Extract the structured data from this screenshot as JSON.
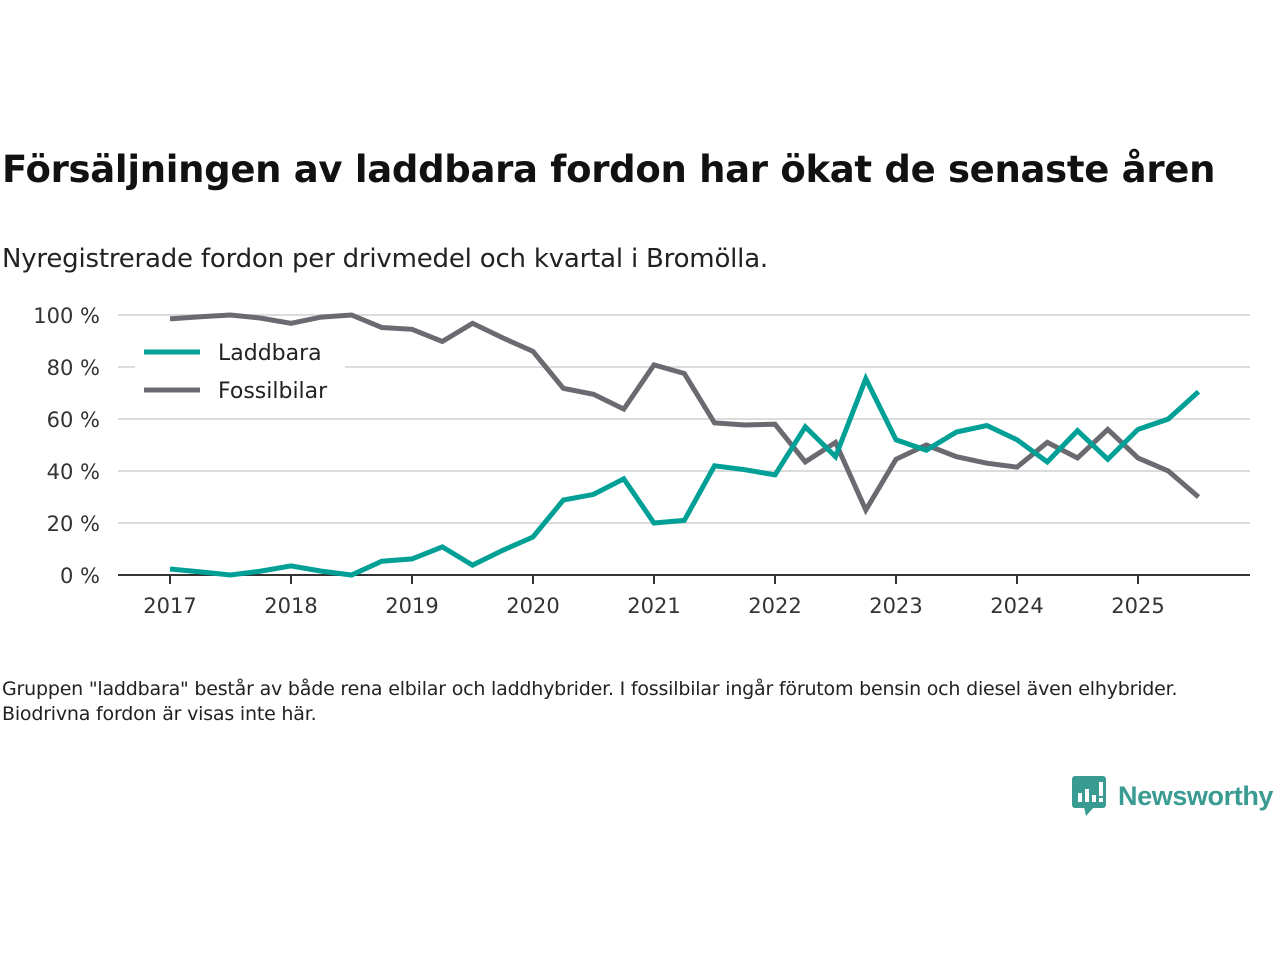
{
  "header": {
    "title": "Försäljningen av laddbara fordon har ökat de senaste åren",
    "subtitle": "Nyregistrerade fordon per drivmedel och kvartal i Bromölla."
  },
  "footer": {
    "note": "Gruppen \"laddbara\" består av både rena elbilar och laddhybrider. I fossilbilar ingår förutom bensin och diesel även elhybrider. Biodrivna fordon är visas inte här.",
    "brand": "Newsworthy",
    "brand_icon": "newsworthy-logo-icon",
    "brand_color": "#3a9b93"
  },
  "chart_data": {
    "type": "line",
    "title": "Försäljningen av laddbara fordon har ökat de senaste åren",
    "subtitle": "Nyregistrerade fordon per drivmedel och kvartal i Bromölla.",
    "xlabel": "",
    "ylabel": "",
    "ylim": [
      0,
      100
    ],
    "y_ticks": [
      0,
      20,
      40,
      60,
      80,
      100
    ],
    "y_tick_labels": [
      "0 %",
      "20 %",
      "40 %",
      "60 %",
      "80 %",
      "100 %"
    ],
    "x_ticks": [
      "2017",
      "2018",
      "2019",
      "2020",
      "2021",
      "2022",
      "2023",
      "2024",
      "2025"
    ],
    "grid": true,
    "legend_position": "top-left",
    "x": [
      "2017Q1",
      "2017Q2",
      "2017Q3",
      "2017Q4",
      "2018Q1",
      "2018Q2",
      "2018Q3",
      "2018Q4",
      "2019Q1",
      "2019Q2",
      "2019Q3",
      "2019Q4",
      "2020Q1",
      "2020Q2",
      "2020Q3",
      "2020Q4",
      "2021Q1",
      "2021Q2",
      "2021Q3",
      "2021Q4",
      "2022Q1",
      "2022Q2",
      "2022Q3",
      "2022Q4",
      "2023Q1",
      "2023Q2",
      "2023Q3",
      "2023Q4",
      "2024Q1",
      "2024Q2",
      "2024Q3",
      "2024Q4",
      "2025Q1",
      "2025Q2",
      "2025Q3"
    ],
    "series": [
      {
        "name": "Laddbara",
        "color": "#00a096",
        "values": [
          2.3,
          1.2,
          0,
          1.5,
          3.5,
          1.5,
          0,
          5.3,
          6.2,
          10.8,
          3.8,
          9.5,
          14.6,
          28.8,
          31,
          37,
          20,
          21,
          42,
          40.5,
          38.5,
          57,
          45.5,
          75.5,
          52,
          48,
          55,
          57.5,
          52,
          43.5,
          55.5,
          44.5,
          56,
          60,
          70.5
        ]
      },
      {
        "name": "Fossilbilar",
        "color": "#6b6a70",
        "values": [
          98.5,
          99.3,
          100,
          98.8,
          96.8,
          99.2,
          100,
          95.2,
          94.5,
          89.8,
          96.8,
          91.2,
          86,
          71.8,
          69.5,
          63.8,
          80.8,
          77.5,
          58.5,
          57.7,
          58,
          43.5,
          51,
          25,
          44.5,
          50,
          45.5,
          43,
          41.5,
          51,
          45,
          56,
          45,
          40,
          30
        ]
      }
    ]
  }
}
